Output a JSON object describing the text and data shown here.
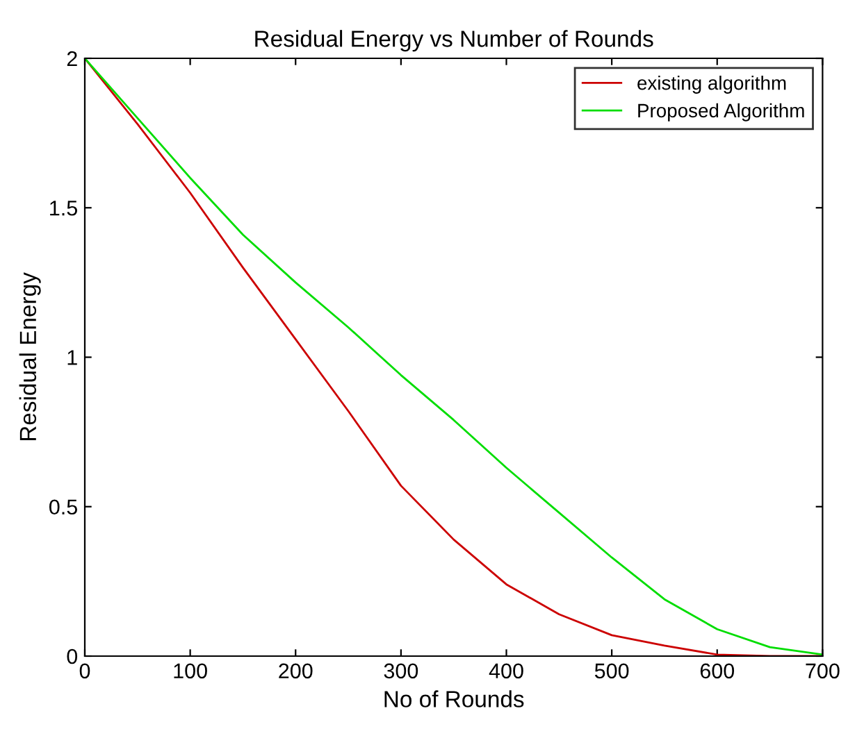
{
  "chart_data": {
    "type": "line",
    "title": "Residual Energy vs Number of Rounds",
    "xlabel": "No of Rounds",
    "ylabel": "Residual Energy",
    "x": [
      0,
      50,
      100,
      150,
      200,
      250,
      300,
      350,
      400,
      450,
      500,
      550,
      600,
      650,
      700
    ],
    "series": [
      {
        "name": "existing algorithm",
        "color": "#cc0000",
        "values": [
          2,
          1.78,
          1.55,
          1.3,
          1.06,
          0.82,
          0.57,
          0.39,
          0.24,
          0.14,
          0.07,
          0.035,
          0.005,
          0,
          0
        ]
      },
      {
        "name": "Proposed Algorithm",
        "color": "#00dd00",
        "values": [
          2,
          1.8,
          1.6,
          1.41,
          1.25,
          1.1,
          0.94,
          0.79,
          0.63,
          0.48,
          0.33,
          0.19,
          0.09,
          0.03,
          0.005
        ]
      }
    ],
    "xlim": [
      0,
      700
    ],
    "ylim": [
      0,
      2
    ],
    "xticks": [
      0,
      100,
      200,
      300,
      400,
      500,
      600,
      700
    ],
    "yticks": [
      0,
      0.5,
      1,
      1.5,
      2
    ],
    "grid": false,
    "legend": "top right",
    "marker": "none",
    "line_style": "solid"
  }
}
